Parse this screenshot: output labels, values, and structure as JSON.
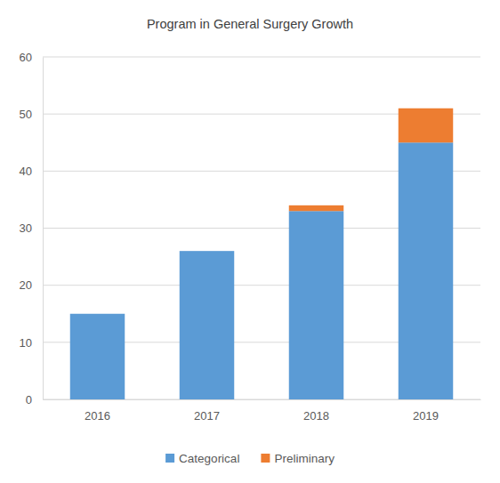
{
  "chart_data": {
    "type": "bar",
    "title": "Program in General Surgery Growth",
    "categories": [
      "2016",
      "2017",
      "2018",
      "2019"
    ],
    "series": [
      {
        "name": "Categorical",
        "color": "#5b9bd5",
        "values": [
          15,
          26,
          33,
          45
        ]
      },
      {
        "name": "Preliminary",
        "color": "#ed7d31",
        "values": [
          0,
          0,
          1,
          6
        ]
      }
    ],
    "stacked": true,
    "ylim": [
      0,
      60
    ],
    "yticks": [
      0,
      10,
      20,
      30,
      40,
      50,
      60
    ],
    "grid": true,
    "legend": "bottom"
  }
}
